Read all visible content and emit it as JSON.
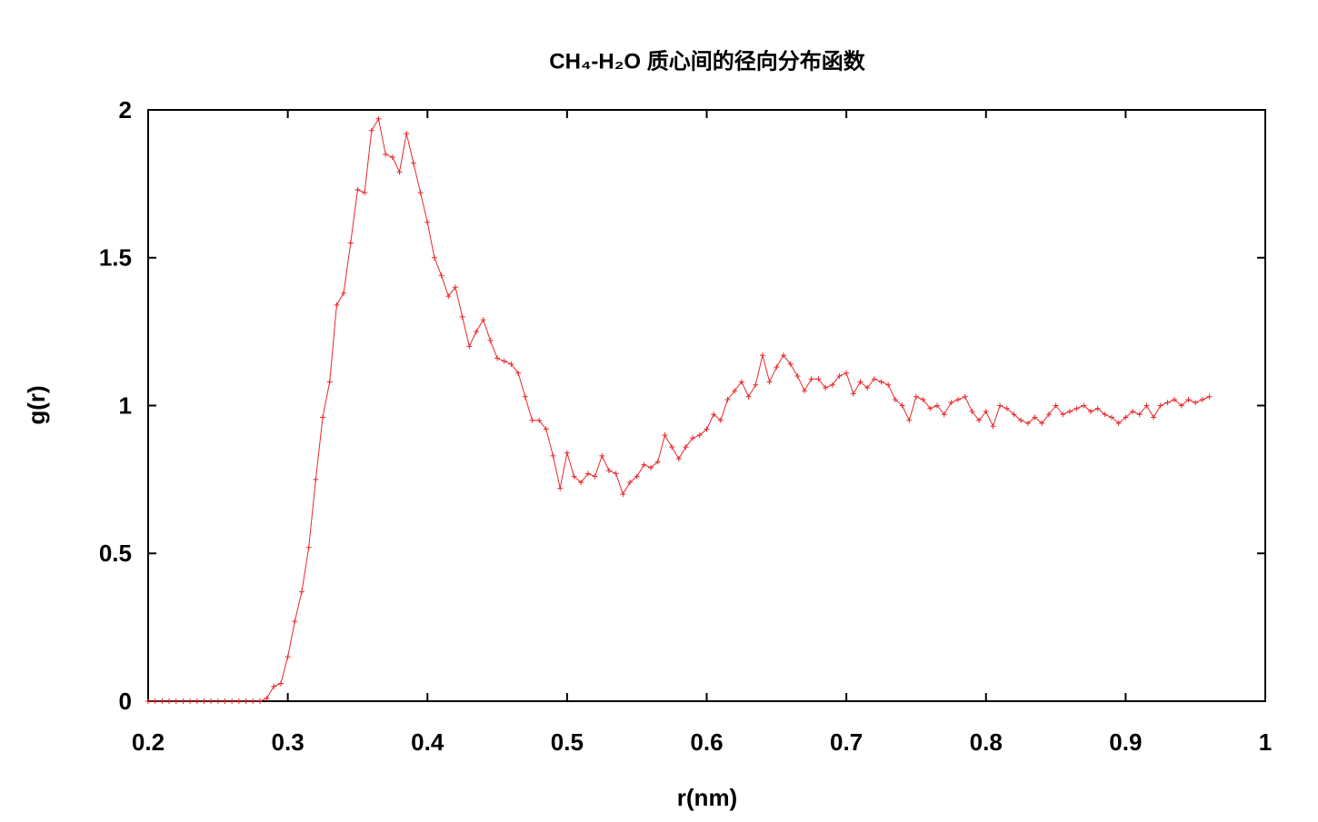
{
  "chart_data": {
    "type": "line",
    "title": "CH₄-H₂O 质心间的径向分布函数",
    "x_label": "r(nm)",
    "y_label": "g(r)",
    "xlim": [
      0.2,
      1
    ],
    "ylim": [
      0,
      2
    ],
    "xticks": [
      0.2,
      0.3,
      0.4,
      0.5,
      0.6,
      0.7,
      0.8,
      0.9,
      1
    ],
    "yticks": [
      0,
      0.5,
      1,
      1.5,
      2
    ],
    "grid": false,
    "x": [
      0.2,
      0.205,
      0.21,
      0.215,
      0.22,
      0.225,
      0.23,
      0.235,
      0.24,
      0.245,
      0.25,
      0.255,
      0.26,
      0.265,
      0.27,
      0.275,
      0.28,
      0.285,
      0.29,
      0.295,
      0.3,
      0.305,
      0.31,
      0.315,
      0.32,
      0.325,
      0.33,
      0.335,
      0.34,
      0.345,
      0.35,
      0.355,
      0.36,
      0.365,
      0.37,
      0.375,
      0.38,
      0.385,
      0.39,
      0.395,
      0.4,
      0.405,
      0.41,
      0.415,
      0.42,
      0.425,
      0.43,
      0.435,
      0.44,
      0.445,
      0.45,
      0.455,
      0.46,
      0.465,
      0.47,
      0.475,
      0.48,
      0.485,
      0.49,
      0.495,
      0.5,
      0.505,
      0.51,
      0.515,
      0.52,
      0.525,
      0.53,
      0.535,
      0.54,
      0.545,
      0.55,
      0.555,
      0.56,
      0.565,
      0.57,
      0.575,
      0.58,
      0.585,
      0.59,
      0.595,
      0.6,
      0.605,
      0.61,
      0.615,
      0.62,
      0.625,
      0.63,
      0.635,
      0.64,
      0.645,
      0.65,
      0.655,
      0.66,
      0.665,
      0.67,
      0.675,
      0.68,
      0.685,
      0.69,
      0.695,
      0.7,
      0.705,
      0.71,
      0.715,
      0.72,
      0.725,
      0.73,
      0.735,
      0.74,
      0.745,
      0.75,
      0.755,
      0.76,
      0.765,
      0.77,
      0.775,
      0.78,
      0.785,
      0.79,
      0.795,
      0.8,
      0.805,
      0.81,
      0.815,
      0.82,
      0.825,
      0.83,
      0.835,
      0.84,
      0.845,
      0.85,
      0.855,
      0.86,
      0.865,
      0.87,
      0.875,
      0.88,
      0.885,
      0.89,
      0.895,
      0.9,
      0.905,
      0.91,
      0.915,
      0.92,
      0.925,
      0.93,
      0.935,
      0.94,
      0.945,
      0.95,
      0.955,
      0.96
    ],
    "series": [
      {
        "color": "#e8282b",
        "values": [
          0,
          0,
          0,
          0,
          0,
          0,
          0,
          0,
          0,
          0,
          0,
          0,
          0,
          0,
          0,
          0,
          0,
          0.01,
          0.05,
          0.06,
          0.15,
          0.27,
          0.37,
          0.52,
          0.75,
          0.96,
          1.08,
          1.34,
          1.38,
          1.55,
          1.73,
          1.72,
          1.93,
          1.97,
          1.85,
          1.84,
          1.79,
          1.92,
          1.82,
          1.72,
          1.62,
          1.5,
          1.44,
          1.37,
          1.4,
          1.3,
          1.2,
          1.25,
          1.29,
          1.22,
          1.16,
          1.15,
          1.14,
          1.11,
          1.03,
          0.95,
          0.95,
          0.92,
          0.83,
          0.72,
          0.84,
          0.76,
          0.74,
          0.77,
          0.76,
          0.83,
          0.78,
          0.77,
          0.7,
          0.74,
          0.76,
          0.8,
          0.79,
          0.81,
          0.9,
          0.86,
          0.82,
          0.86,
          0.89,
          0.9,
          0.92,
          0.97,
          0.95,
          1.02,
          1.05,
          1.08,
          1.03,
          1.07,
          1.17,
          1.08,
          1.13,
          1.17,
          1.14,
          1.1,
          1.05,
          1.09,
          1.09,
          1.06,
          1.07,
          1.1,
          1.11,
          1.04,
          1.08,
          1.06,
          1.09,
          1.08,
          1.07,
          1.02,
          1,
          0.95,
          1.03,
          1.02,
          0.99,
          1,
          0.97,
          1.01,
          1.02,
          1.03,
          0.98,
          0.95,
          0.98,
          0.93,
          1,
          0.99,
          0.97,
          0.95,
          0.94,
          0.96,
          0.94,
          0.97,
          1,
          0.97,
          0.98,
          0.99,
          1,
          0.98,
          0.99,
          0.97,
          0.96,
          0.94,
          0.96,
          0.98,
          0.97,
          1,
          0.96,
          1,
          1.01,
          1.02,
          1,
          1.02,
          1.01,
          1.02,
          1.03
        ]
      }
    ]
  }
}
